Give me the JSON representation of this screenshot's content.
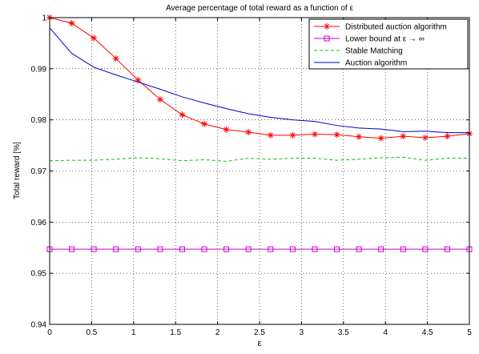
{
  "chart_data": {
    "type": "line",
    "title": "Average percentage of total reward as a function of ε",
    "xlabel": "ε",
    "ylabel": "Total reward [%]",
    "xlim": [
      0,
      5
    ],
    "ylim": [
      0.94,
      1.0
    ],
    "xticks": [
      0,
      0.5,
      1,
      1.5,
      2,
      2.5,
      3,
      3.5,
      4,
      4.5,
      5
    ],
    "xtick_labels": [
      "0",
      "0.5",
      "1",
      "1.5",
      "2",
      "2.5",
      "3",
      "3.5",
      "4",
      "4.5",
      "5"
    ],
    "yticks": [
      0.94,
      0.95,
      0.96,
      0.97,
      0.98,
      0.99,
      1.0
    ],
    "ytick_labels": [
      "0.94",
      "0.95",
      "0.96",
      "0.97",
      "0.98",
      "0.99",
      "1"
    ],
    "grid": true,
    "grid_style": "dotted",
    "legend_position": "top-right",
    "series": [
      {
        "name": "Distributed auction algorithm",
        "color": "#ff0000",
        "line_style": "solid",
        "marker": "asterisk",
        "x": [
          0,
          0.263,
          0.526,
          0.789,
          1.053,
          1.316,
          1.579,
          1.842,
          2.105,
          2.368,
          2.632,
          2.895,
          3.158,
          3.421,
          3.684,
          3.947,
          4.211,
          4.474,
          4.737,
          5.0
        ],
        "y": [
          1.0,
          0.9989,
          0.996,
          0.992,
          0.9878,
          0.984,
          0.981,
          0.9792,
          0.9781,
          0.9776,
          0.977,
          0.977,
          0.9772,
          0.9771,
          0.9767,
          0.9764,
          0.9768,
          0.9765,
          0.9768,
          0.9773
        ]
      },
      {
        "name": "Lower bound at ε → ∞",
        "color": "#cc00cc",
        "line_style": "solid",
        "marker": "square",
        "x": [
          0,
          0.263,
          0.526,
          0.789,
          1.053,
          1.316,
          1.579,
          1.842,
          2.105,
          2.368,
          2.632,
          2.895,
          3.158,
          3.421,
          3.684,
          3.947,
          4.211,
          4.474,
          4.737,
          5.0
        ],
        "y": [
          0.9547,
          0.9547,
          0.9547,
          0.9547,
          0.9547,
          0.9547,
          0.9547,
          0.9547,
          0.9547,
          0.9547,
          0.9547,
          0.9547,
          0.9547,
          0.9547,
          0.9547,
          0.9547,
          0.9547,
          0.9547,
          0.9547,
          0.9547
        ]
      },
      {
        "name": "Stable Matching",
        "color": "#00cc00",
        "line_style": "dashed",
        "marker": "none",
        "x": [
          0,
          0.263,
          0.526,
          0.789,
          1.053,
          1.316,
          1.579,
          1.842,
          2.105,
          2.368,
          2.632,
          2.895,
          3.158,
          3.421,
          3.684,
          3.947,
          4.211,
          4.474,
          4.737,
          5.0
        ],
        "y": [
          0.972,
          0.9721,
          0.9721,
          0.9723,
          0.9726,
          0.9724,
          0.972,
          0.9722,
          0.9719,
          0.9725,
          0.9723,
          0.9725,
          0.9725,
          0.9721,
          0.9723,
          0.9726,
          0.9727,
          0.9721,
          0.9725,
          0.9725
        ]
      },
      {
        "name": "Auction algorithm",
        "color": "#0000cc",
        "line_style": "solid",
        "marker": "none",
        "x": [
          0,
          0.263,
          0.526,
          0.789,
          1.053,
          1.316,
          1.579,
          1.842,
          2.105,
          2.368,
          2.632,
          2.895,
          3.158,
          3.421,
          3.684,
          3.947,
          4.211,
          4.474,
          4.737,
          5.0
        ],
        "y": [
          0.998,
          0.993,
          0.9903,
          0.9888,
          0.9874,
          0.986,
          0.9845,
          0.9833,
          0.9822,
          0.9812,
          0.9805,
          0.98,
          0.9797,
          0.9789,
          0.9784,
          0.9782,
          0.9777,
          0.9778,
          0.9775,
          0.9775
        ]
      }
    ]
  }
}
